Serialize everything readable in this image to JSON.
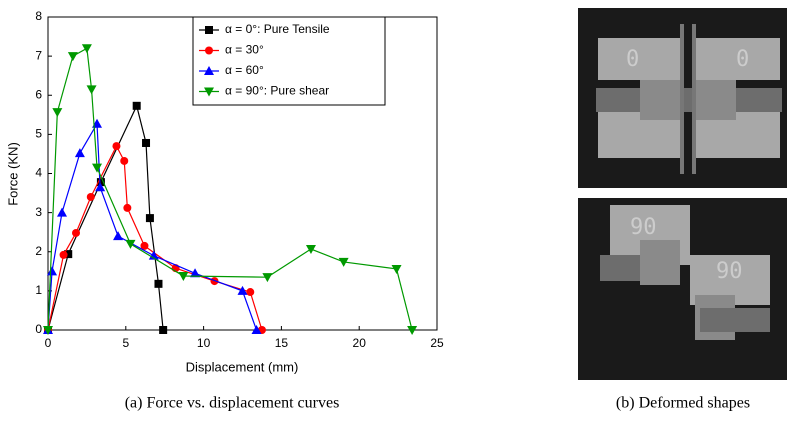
{
  "chart_data": {
    "type": "line",
    "xlabel": "Displacement (mm)",
    "ylabel": "Force (KN)",
    "xlim": [
      0,
      25
    ],
    "ylim": [
      0,
      8
    ],
    "xticks": [
      0,
      5,
      10,
      15,
      20,
      25
    ],
    "yticks": [
      0,
      1,
      2,
      3,
      4,
      5,
      6,
      7,
      8
    ],
    "legend": "upper center",
    "series": [
      {
        "name": "α = 0°: Pure Tensile",
        "color": "#000000",
        "marker": "square",
        "x": [
          0,
          1.3,
          3.4,
          5.7,
          6.3,
          6.55,
          7.1,
          7.4
        ],
        "values": [
          0,
          1.94,
          3.78,
          5.73,
          4.78,
          2.86,
          1.18,
          0
        ]
      },
      {
        "name": "α = 30°",
        "color": "#ff0000",
        "marker": "circle",
        "x": [
          0,
          1.0,
          1.8,
          2.75,
          4.4,
          4.9,
          5.1,
          6.2,
          8.2,
          10.7,
          13.0,
          13.75
        ],
        "values": [
          0,
          1.92,
          2.48,
          3.4,
          4.7,
          4.32,
          3.12,
          2.15,
          1.58,
          1.25,
          0.97,
          0
        ]
      },
      {
        "name": "α = 60°",
        "color": "#0000ff",
        "marker": "triangle-up",
        "x": [
          0,
          0.26,
          0.9,
          2.05,
          3.15,
          3.35,
          4.5,
          6.8,
          9.45,
          12.5,
          13.4
        ],
        "values": [
          0,
          1.5,
          3.0,
          4.52,
          5.27,
          3.65,
          2.4,
          1.9,
          1.45,
          1.0,
          0
        ]
      },
      {
        "name": "α = 90°: Pure shear",
        "color": "#009900",
        "marker": "triangle-down",
        "x": [
          0,
          0.6,
          1.6,
          2.5,
          2.8,
          3.15,
          5.3,
          8.7,
          14.1,
          16.9,
          19.0,
          22.4,
          23.4
        ],
        "values": [
          0,
          5.57,
          7.0,
          7.2,
          6.15,
          4.15,
          2.2,
          1.38,
          1.35,
          2.07,
          1.74,
          1.56,
          0
        ]
      }
    ]
  },
  "photos": [
    {
      "labels": [
        "0",
        "0"
      ]
    },
    {
      "labels": [
        "90",
        "90"
      ]
    }
  ],
  "captions": [
    "(a) Force vs. displacement curves",
    "(b) Deformed shapes"
  ]
}
